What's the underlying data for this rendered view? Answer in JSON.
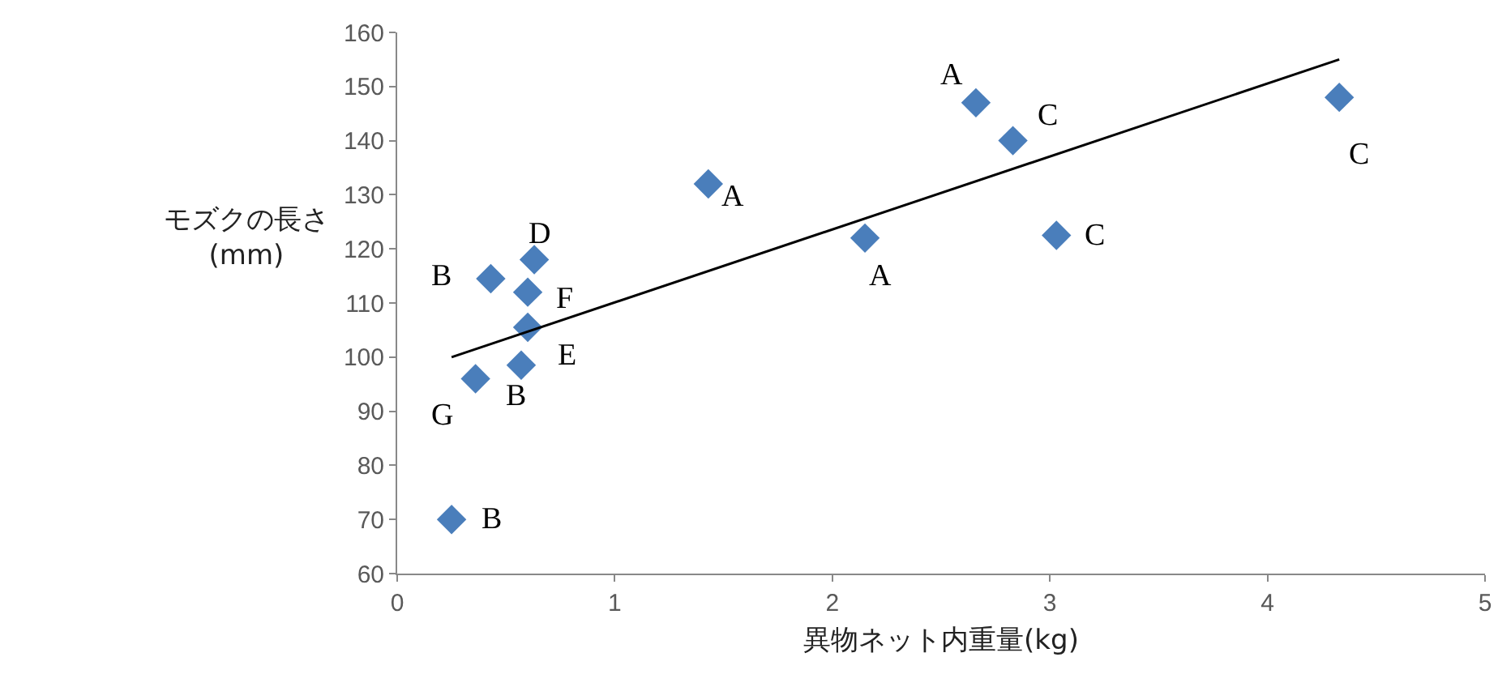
{
  "chart_data": {
    "type": "scatter",
    "xlabel": "異物ネット内重量(kg)",
    "ylabel": "モズクの長さ\n(mm)",
    "xlim": [
      0,
      5
    ],
    "xticks": [
      0,
      1,
      2,
      3,
      4,
      5
    ],
    "ylim": [
      60,
      160
    ],
    "yticks": [
      60,
      70,
      80,
      90,
      100,
      110,
      120,
      130,
      140,
      150,
      160
    ],
    "grid": false,
    "marker": "diamond",
    "series": [
      {
        "color": "#4a7ebb",
        "x": [
          0.25,
          0.36,
          0.57,
          0.6,
          0.6,
          0.43,
          0.63,
          1.43,
          2.15,
          2.66,
          2.83,
          3.03,
          4.33
        ],
        "values": [
          70,
          96,
          98.5,
          105.5,
          112,
          114.5,
          118,
          132,
          122,
          147,
          140,
          122.5,
          148
        ]
      },
      {
        "type": "line",
        "color": "#000000",
        "marker": "none",
        "line_style": "solid",
        "x": [
          0.25,
          4.33
        ],
        "values": [
          100,
          155
        ]
      }
    ],
    "annotations": [
      {
        "text": "A",
        "x": 2.66,
        "y": 147
      },
      {
        "text": "C",
        "x": 2.83,
        "y": 140
      },
      {
        "text": "C",
        "x": 4.33,
        "y": 148
      },
      {
        "text": "A",
        "x": 1.43,
        "y": 132
      },
      {
        "text": "A",
        "x": 2.15,
        "y": 122
      },
      {
        "text": "C",
        "x": 3.03,
        "y": 122.5
      },
      {
        "text": "D",
        "x": 0.63,
        "y": 118
      },
      {
        "text": "B",
        "x": 0.43,
        "y": 114.5
      },
      {
        "text": "F",
        "x": 0.6,
        "y": 112
      },
      {
        "text": "E",
        "x": 0.6,
        "y": 105.5
      },
      {
        "text": "B",
        "x": 0.57,
        "y": 98.5
      },
      {
        "text": "G",
        "x": 0.36,
        "y": 96
      },
      {
        "text": "B",
        "x": 0.25,
        "y": 70
      }
    ]
  }
}
